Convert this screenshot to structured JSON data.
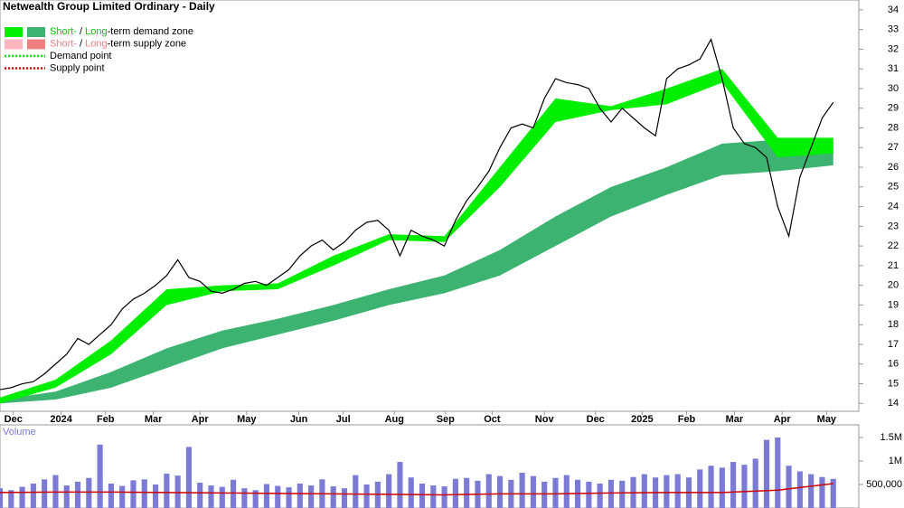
{
  "chart_data": {
    "type": "stock",
    "title": "Netwealth Group Limited Ordinary - Daily",
    "legend": [
      {
        "short": "Short-",
        "sep": " / ",
        "long": "Long",
        "rest": "-term demand zone",
        "colors": [
          "#00ee00",
          "#3cb371"
        ],
        "text_color": "#00cc00"
      },
      {
        "short": "Short-",
        "sep": " / ",
        "long": "Long",
        "rest": "-term supply zone",
        "colors": [
          "#ffb6c1",
          "#f08080"
        ],
        "text_color": "#f08080"
      },
      {
        "label": "Demand point",
        "color": "#00ee00"
      },
      {
        "label": "Supply point",
        "color": "#dd0000"
      }
    ],
    "x": [
      0,
      1,
      2,
      3,
      4,
      5,
      6,
      7,
      8,
      9,
      10,
      11,
      12,
      13,
      14,
      15,
      16,
      17,
      18,
      19,
      20,
      21,
      22,
      23,
      24,
      25,
      26,
      27,
      28,
      29,
      30,
      31,
      32,
      33,
      34,
      35,
      36,
      37,
      38,
      39,
      40,
      41,
      42,
      43,
      44,
      45,
      46,
      47,
      48,
      49,
      50,
      51,
      52,
      53,
      54,
      55,
      56,
      57,
      58,
      59,
      60,
      61,
      62,
      63,
      64,
      65,
      66,
      67,
      68,
      69,
      70,
      71,
      72,
      73,
      74,
      75
    ],
    "xlim": [
      0,
      77.3
    ],
    "xticks": [
      {
        "value": 1.2,
        "label": "Dec"
      },
      {
        "value": 5.5,
        "label": "2024"
      },
      {
        "value": 9.5,
        "label": "Feb"
      },
      {
        "value": 13.8,
        "label": "Mar"
      },
      {
        "value": 18,
        "label": "Apr"
      },
      {
        "value": 22.2,
        "label": "May"
      },
      {
        "value": 26.9,
        "label": "Jun"
      },
      {
        "value": 30.9,
        "label": "Jul"
      },
      {
        "value": 35.5,
        "label": "Aug"
      },
      {
        "value": 40.1,
        "label": "Sep"
      },
      {
        "value": 44.3,
        "label": "Oct"
      },
      {
        "value": 49,
        "label": "Nov"
      },
      {
        "value": 53.6,
        "label": "Dec"
      },
      {
        "value": 57.8,
        "label": "2025"
      },
      {
        "value": 61.8,
        "label": "Feb"
      },
      {
        "value": 66.1,
        "label": "Mar"
      },
      {
        "value": 70.4,
        "label": "Apr"
      },
      {
        "value": 74.4,
        "label": "May"
      }
    ],
    "ylim": [
      13.6,
      34.5
    ],
    "yticks": [
      14,
      15,
      16,
      17,
      18,
      19,
      20,
      21,
      22,
      23,
      24,
      25,
      26,
      27,
      28,
      29,
      30,
      31,
      32,
      33,
      34
    ],
    "price": {
      "color": "#000000",
      "values": [
        14.7,
        14.8,
        15.0,
        15.1,
        15.5,
        16.0,
        16.5,
        17.3,
        17.0,
        17.5,
        18.0,
        18.8,
        19.3,
        19.6,
        20.0,
        20.5,
        21.3,
        20.4,
        20.2,
        19.7,
        19.6,
        19.8,
        20.1,
        20.2,
        20.0,
        20.4,
        20.8,
        21.5,
        22.0,
        22.3,
        21.8,
        22.2,
        22.8,
        23.2,
        23.3,
        22.8,
        21.5,
        22.8,
        22.5,
        22.3,
        22.0,
        23.3,
        24.3,
        25.0,
        25.8,
        27.0,
        28.0,
        28.2,
        28.0,
        29.5,
        30.5,
        30.3,
        30.2,
        30.0,
        29.0,
        28.3,
        29.0,
        28.5,
        28.0,
        27.6,
        30.5,
        31.0,
        31.2,
        31.5,
        32.5,
        30.5,
        28.0,
        27.2,
        27.0,
        26.5,
        24.0,
        22.5,
        25.5,
        27.0,
        28.5,
        29.3
      ]
    },
    "long_term_zone": {
      "color": "#3cb371",
      "x": [
        0,
        5,
        10,
        15,
        20,
        25,
        30,
        35,
        40,
        45,
        50,
        55,
        60,
        65,
        70,
        75
      ],
      "lower": [
        14.0,
        14.2,
        14.8,
        15.8,
        16.8,
        17.5,
        18.2,
        19.0,
        19.6,
        20.5,
        22.0,
        23.5,
        24.6,
        25.6,
        25.8,
        26.1
      ],
      "upper": [
        14.2,
        14.6,
        15.6,
        16.8,
        17.7,
        18.3,
        19.0,
        19.8,
        20.5,
        21.8,
        23.5,
        25.0,
        26.0,
        27.2,
        27.4,
        27.3
      ]
    },
    "short_term_zone": {
      "color": "#00ee00",
      "x": [
        0,
        5,
        10,
        15,
        20,
        25,
        30,
        35,
        40,
        45,
        50,
        55,
        60,
        65,
        70,
        75
      ],
      "lower": [
        14.0,
        14.8,
        16.5,
        19.0,
        19.7,
        19.8,
        21.0,
        22.3,
        22.2,
        25.0,
        28.3,
        28.9,
        29.2,
        30.3,
        26.5,
        26.7
      ],
      "upper": [
        14.3,
        15.2,
        17.2,
        19.8,
        20.0,
        20.1,
        21.5,
        22.6,
        22.5,
        26.0,
        29.5,
        29.1,
        30.0,
        31.0,
        27.5,
        27.5
      ]
    },
    "volume": {
      "label": "Volume",
      "color": "#7b7bd6",
      "values": [
        420000,
        380000,
        450000,
        520000,
        610000,
        700000,
        480000,
        560000,
        640000,
        1350000,
        520000,
        470000,
        590000,
        610000,
        500000,
        730000,
        690000,
        1300000,
        540000,
        480000,
        450000,
        600000,
        420000,
        380000,
        510000,
        470000,
        440000,
        520000,
        480000,
        610000,
        460000,
        420000,
        700000,
        500000,
        560000,
        720000,
        980000,
        650000,
        520000,
        480000,
        460000,
        620000,
        640000,
        580000,
        720000,
        680000,
        600000,
        750000,
        680000,
        560000,
        640000,
        700000,
        600000,
        560000,
        520000,
        600000,
        580000,
        660000,
        720000,
        650000,
        700000,
        720000,
        650000,
        820000,
        900000,
        860000,
        980000,
        920000,
        1050000,
        1450000,
        1500000,
        900000,
        780000,
        720000,
        660000,
        620000
      ],
      "average": {
        "color": "#cc0000",
        "x": [
          0,
          5,
          10,
          15,
          20,
          25,
          30,
          35,
          40,
          45,
          50,
          55,
          60,
          65,
          70,
          75
        ],
        "values": [
          330000,
          340000,
          340000,
          330000,
          320000,
          310000,
          300000,
          290000,
          280000,
          300000,
          300000,
          320000,
          330000,
          330000,
          380000,
          520000
        ]
      },
      "ylim": [
        0,
        1770000
      ],
      "yticks": [
        {
          "value": 500000,
          "label": "500,000"
        },
        {
          "value": 1000000,
          "label": "1M"
        },
        {
          "value": 1500000,
          "label": "1.5M"
        }
      ]
    }
  }
}
